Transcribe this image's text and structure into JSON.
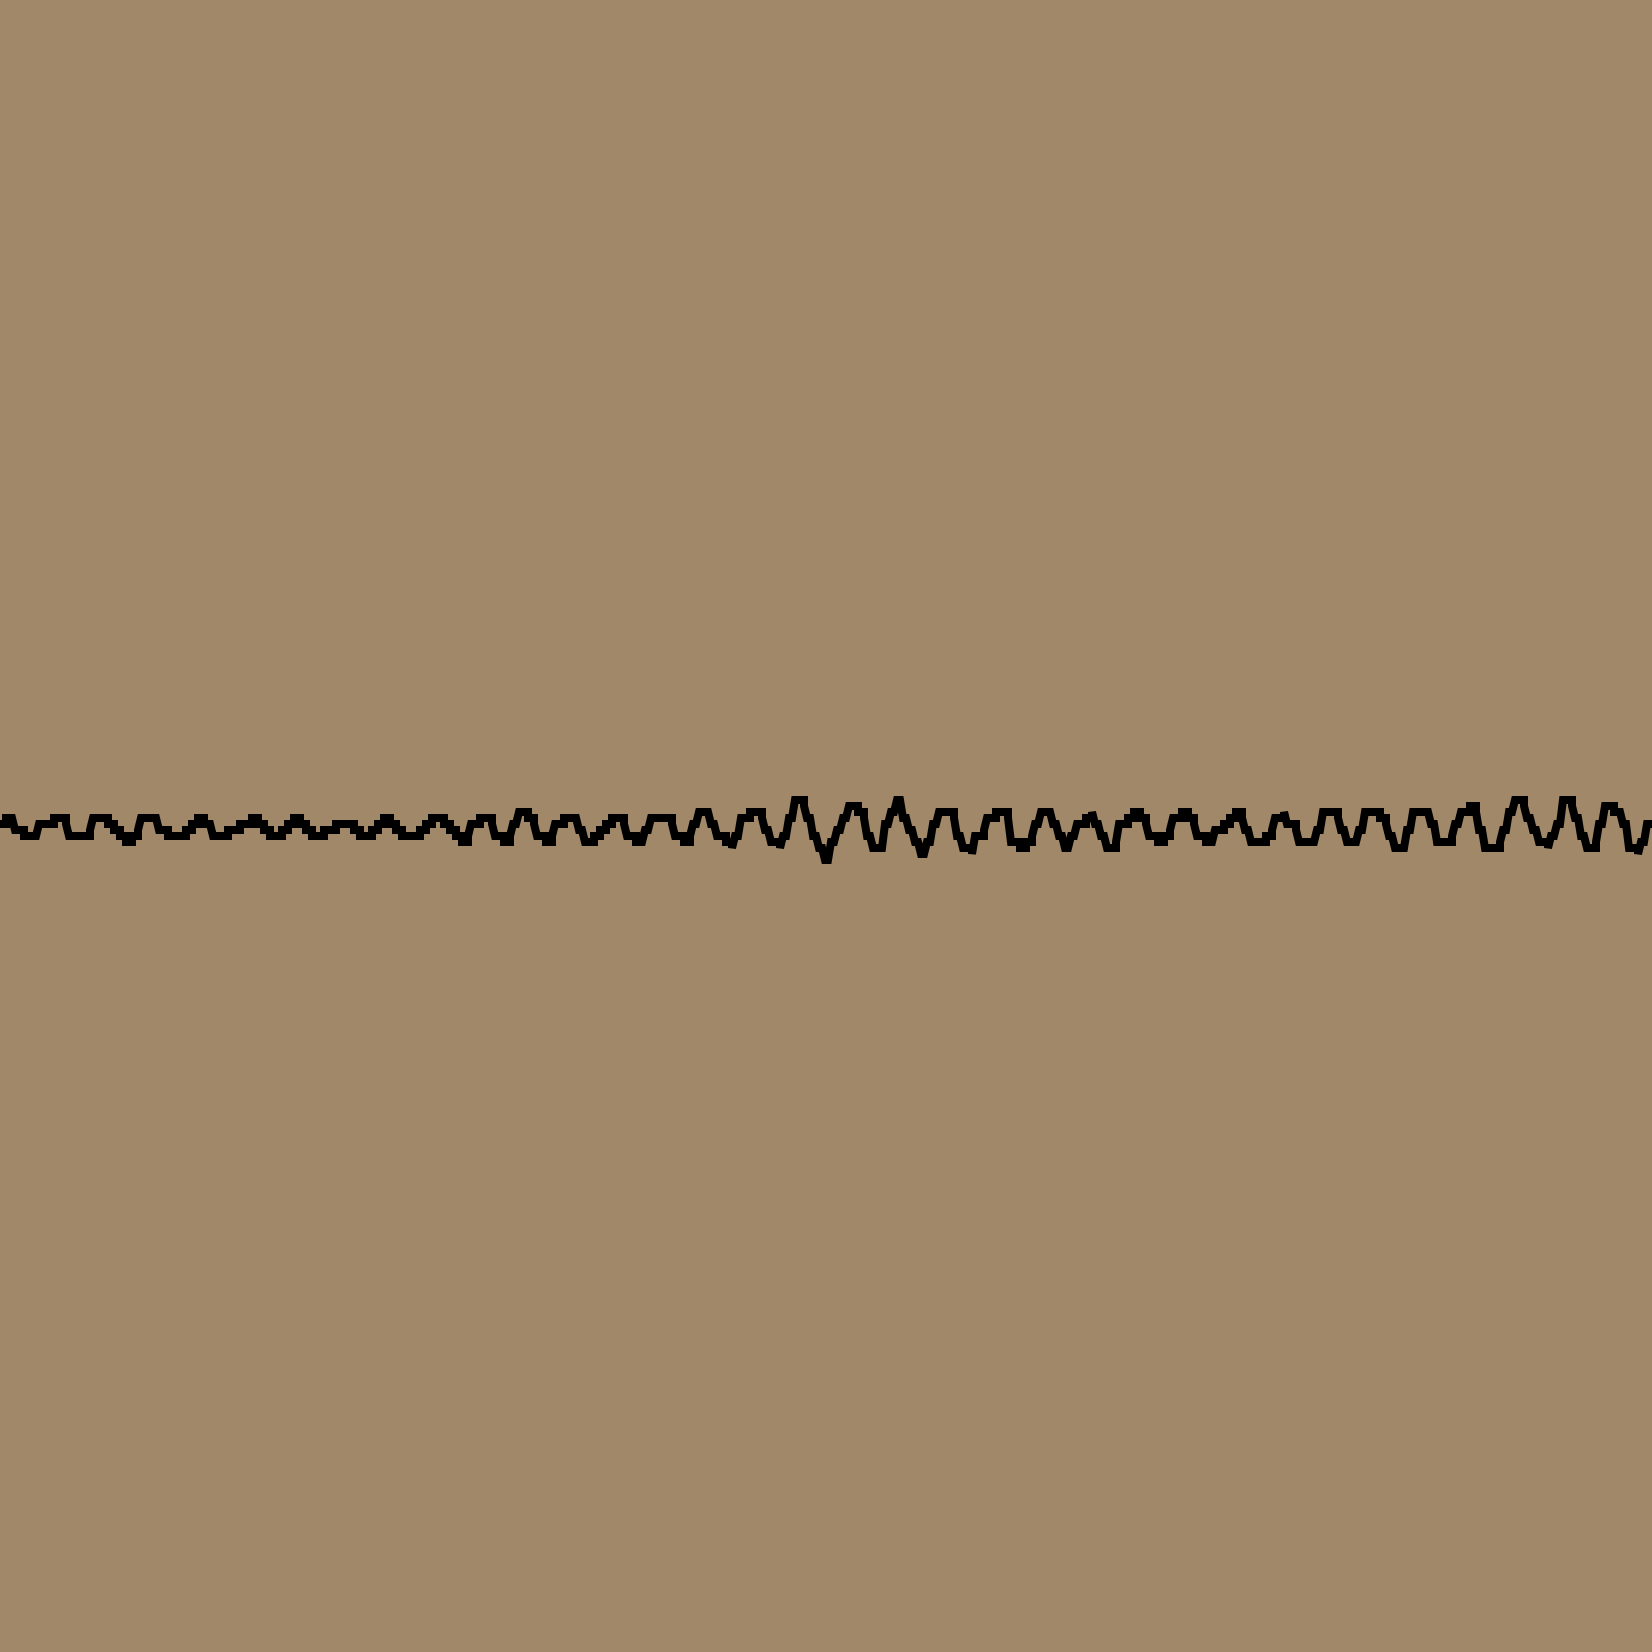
{
  "background": {
    "color": "#a08868",
    "texture": "flat"
  },
  "waveform": {
    "type": "pixelated-line-trace",
    "color": "#000000",
    "style": "stair-stepped",
    "amplitude_envelope": [
      0.35,
      0.4,
      0.45,
      0.3,
      0.25,
      0.3,
      0.4,
      0.45,
      0.5,
      0.55,
      0.75,
      0.95,
      0.85,
      0.7,
      0.6,
      0.55,
      0.5,
      0.55,
      0.6,
      0.7,
      0.85,
      0.9,
      0.75
    ]
  }
}
